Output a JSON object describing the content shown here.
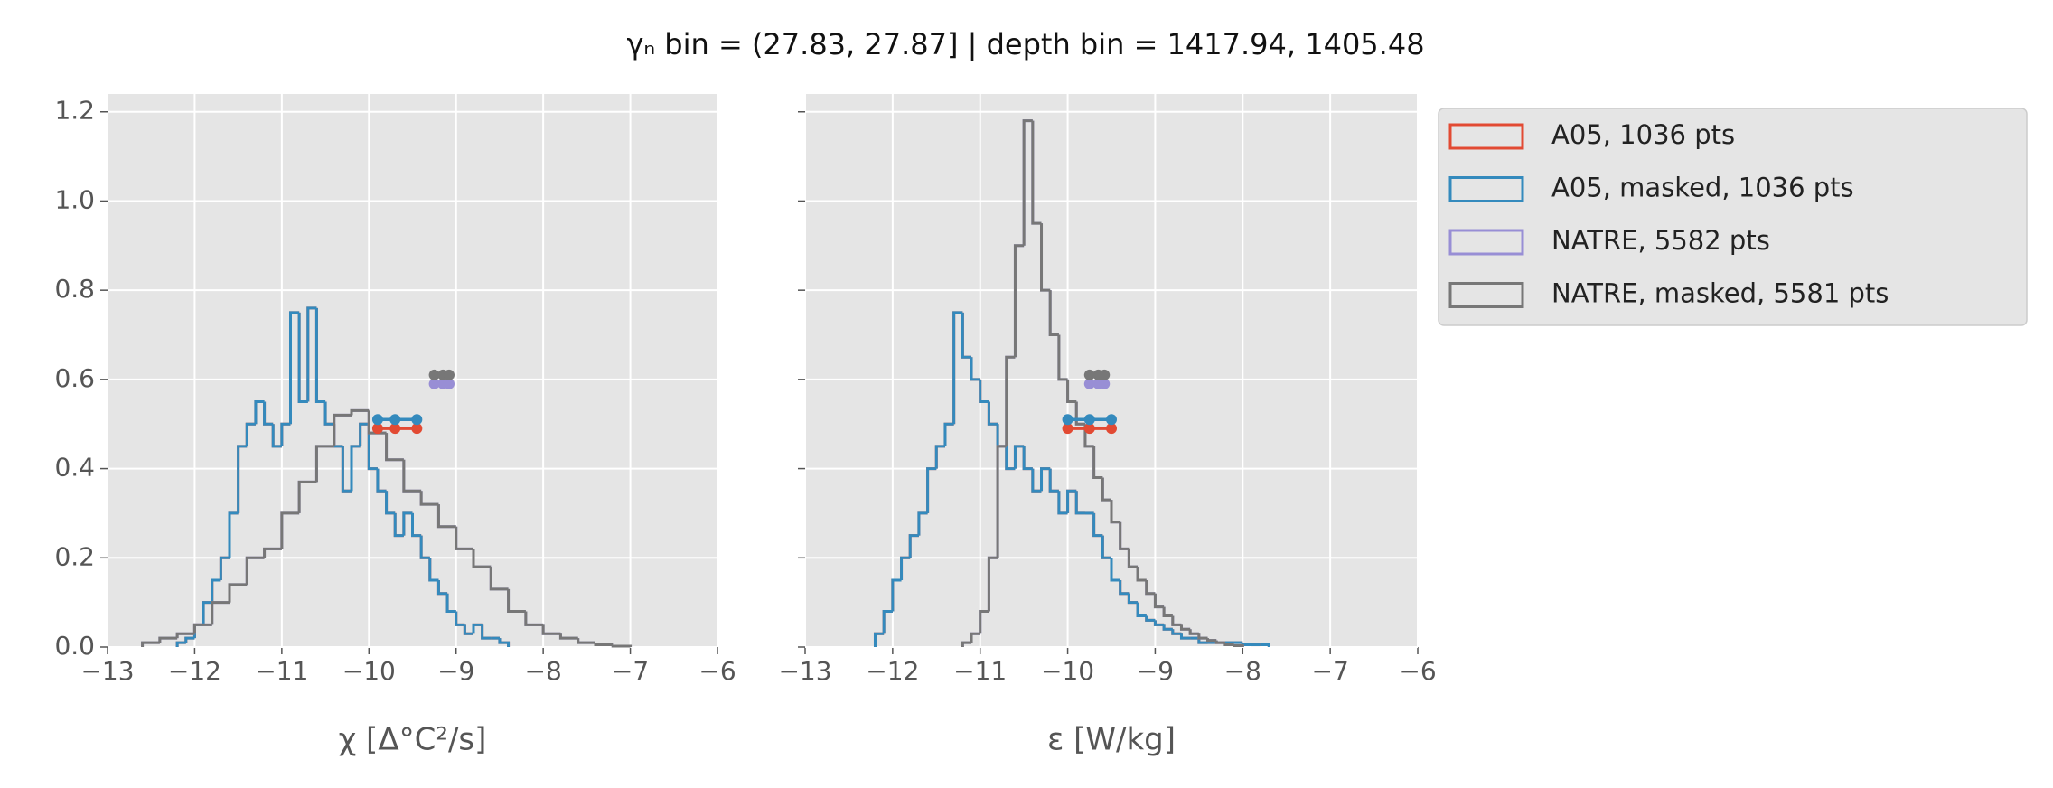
{
  "title": "γₙ bin = (27.83, 27.87] | depth bin = 1417.94, 1405.48",
  "chart_data": [
    {
      "type": "step-histogram",
      "xlabel": "χ [Δ°C²/s]",
      "xlim": [
        -13,
        -6
      ],
      "xticks": [
        {
          "value": -13,
          "label": "−13"
        },
        {
          "value": -12,
          "label": "−12"
        },
        {
          "value": -11,
          "label": "−11"
        },
        {
          "value": -10,
          "label": "−10"
        },
        {
          "value": -9,
          "label": "−9"
        },
        {
          "value": -8,
          "label": "−8"
        },
        {
          "value": -7,
          "label": "−7"
        },
        {
          "value": -6,
          "label": "−6"
        }
      ],
      "ylim": [
        0,
        1.24
      ],
      "yticks": [
        {
          "value": 0,
          "label": "0.0"
        },
        {
          "value": 0.2,
          "label": "0.2"
        },
        {
          "value": 0.4,
          "label": "0.4"
        },
        {
          "value": 0.6,
          "label": "0.6"
        },
        {
          "value": 0.8,
          "label": "0.8"
        },
        {
          "value": 1.0,
          "label": "1.0"
        },
        {
          "value": 1.2,
          "label": "1.2"
        }
      ],
      "grid": true,
      "series": [
        {
          "name": "A05, 1036 pts",
          "color": "#E24A33",
          "bins": [
            -12.2,
            -12.1,
            -12.0,
            -11.9,
            -11.8,
            -11.7,
            -11.6,
            -11.5,
            -11.4,
            -11.3,
            -11.2,
            -11.1,
            -11.0,
            -10.9,
            -10.8,
            -10.7,
            -10.6,
            -10.5,
            -10.4,
            -10.3,
            -10.2,
            -10.1,
            -10.0,
            -9.9,
            -9.8,
            -9.7,
            -9.6,
            -9.5,
            -9.4,
            -9.3,
            -9.2,
            -9.1,
            -9.0,
            -8.9,
            -8.8,
            -8.7,
            -8.6,
            -8.5,
            -8.4
          ],
          "values": [
            0.01,
            0.02,
            0.05,
            0.1,
            0.15,
            0.2,
            0.3,
            0.45,
            0.5,
            0.55,
            0.5,
            0.45,
            0.5,
            0.75,
            0.55,
            0.76,
            0.55,
            0.5,
            0.45,
            0.35,
            0.45,
            0.5,
            0.4,
            0.35,
            0.3,
            0.25,
            0.3,
            0.25,
            0.2,
            0.15,
            0.12,
            0.08,
            0.05,
            0.03,
            0.05,
            0.02,
            0.02,
            0.01
          ],
          "marker_x": [
            -9.9,
            -9.7,
            -9.45
          ],
          "marker_y": 0.49
        },
        {
          "name": "A05, masked,  1036 pts",
          "color": "#348ABD",
          "bins": [
            -12.2,
            -12.1,
            -12.0,
            -11.9,
            -11.8,
            -11.7,
            -11.6,
            -11.5,
            -11.4,
            -11.3,
            -11.2,
            -11.1,
            -11.0,
            -10.9,
            -10.8,
            -10.7,
            -10.6,
            -10.5,
            -10.4,
            -10.3,
            -10.2,
            -10.1,
            -10.0,
            -9.9,
            -9.8,
            -9.7,
            -9.6,
            -9.5,
            -9.4,
            -9.3,
            -9.2,
            -9.1,
            -9.0,
            -8.9,
            -8.8,
            -8.7,
            -8.6,
            -8.5,
            -8.4
          ],
          "values": [
            0.01,
            0.02,
            0.05,
            0.1,
            0.15,
            0.2,
            0.3,
            0.45,
            0.5,
            0.55,
            0.5,
            0.45,
            0.5,
            0.75,
            0.55,
            0.76,
            0.55,
            0.5,
            0.45,
            0.35,
            0.45,
            0.5,
            0.4,
            0.35,
            0.3,
            0.25,
            0.3,
            0.25,
            0.2,
            0.15,
            0.12,
            0.08,
            0.05,
            0.03,
            0.05,
            0.02,
            0.02,
            0.01
          ],
          "marker_x": [
            -9.9,
            -9.7,
            -9.45
          ],
          "marker_y": 0.51
        },
        {
          "name": "NATRE, 5582 pts",
          "color": "#988ED5",
          "bins": [
            -12.6,
            -12.4,
            -12.2,
            -12.0,
            -11.8,
            -11.6,
            -11.4,
            -11.2,
            -11.0,
            -10.8,
            -10.6,
            -10.4,
            -10.2,
            -10.0,
            -9.8,
            -9.6,
            -9.4,
            -9.2,
            -9.0,
            -8.8,
            -8.6,
            -8.4,
            -8.2,
            -8.0,
            -7.8,
            -7.6,
            -7.4,
            -7.2,
            -7.0
          ],
          "values": [
            0.01,
            0.02,
            0.03,
            0.05,
            0.1,
            0.14,
            0.2,
            0.22,
            0.3,
            0.37,
            0.45,
            0.52,
            0.53,
            0.48,
            0.42,
            0.35,
            0.32,
            0.27,
            0.22,
            0.18,
            0.13,
            0.08,
            0.05,
            0.03,
            0.02,
            0.01,
            0.005,
            0.002
          ],
          "marker_x": [
            -9.25,
            -9.15,
            -9.08
          ],
          "marker_y": 0.59
        },
        {
          "name": "NATRE, masked,  5581 pts",
          "color": "#777777",
          "bins": [
            -12.6,
            -12.4,
            -12.2,
            -12.0,
            -11.8,
            -11.6,
            -11.4,
            -11.2,
            -11.0,
            -10.8,
            -10.6,
            -10.4,
            -10.2,
            -10.0,
            -9.8,
            -9.6,
            -9.4,
            -9.2,
            -9.0,
            -8.8,
            -8.6,
            -8.4,
            -8.2,
            -8.0,
            -7.8,
            -7.6,
            -7.4,
            -7.2,
            -7.0
          ],
          "values": [
            0.01,
            0.02,
            0.03,
            0.05,
            0.1,
            0.14,
            0.2,
            0.22,
            0.3,
            0.37,
            0.45,
            0.52,
            0.53,
            0.48,
            0.42,
            0.35,
            0.32,
            0.27,
            0.22,
            0.18,
            0.13,
            0.08,
            0.05,
            0.03,
            0.02,
            0.01,
            0.005,
            0.002
          ],
          "marker_x": [
            -9.25,
            -9.15,
            -9.08
          ],
          "marker_y": 0.61
        }
      ]
    },
    {
      "type": "step-histogram",
      "xlabel": "ε [W/kg]",
      "xlim": [
        -13,
        -6
      ],
      "xticks": [
        {
          "value": -13,
          "label": "−13"
        },
        {
          "value": -12,
          "label": "−12"
        },
        {
          "value": -11,
          "label": "−11"
        },
        {
          "value": -10,
          "label": "−10"
        },
        {
          "value": -9,
          "label": "−9"
        },
        {
          "value": -8,
          "label": "−8"
        },
        {
          "value": -7,
          "label": "−7"
        },
        {
          "value": -6,
          "label": "−6"
        }
      ],
      "ylim": [
        0,
        1.24
      ],
      "yticks": [
        0,
        0.2,
        0.4,
        0.6,
        0.8,
        1,
        1.2
      ],
      "grid": true,
      "series": [
        {
          "color": "#E24A33",
          "bins": [
            -12.2,
            -12.1,
            -12.0,
            -11.9,
            -11.8,
            -11.7,
            -11.6,
            -11.5,
            -11.4,
            -11.3,
            -11.2,
            -11.1,
            -11.0,
            -10.9,
            -10.8,
            -10.7,
            -10.6,
            -10.5,
            -10.4,
            -10.3,
            -10.2,
            -10.1,
            -10.0,
            -9.9,
            -9.8,
            -9.7,
            -9.6,
            -9.5,
            -9.4,
            -9.3,
            -9.2,
            -9.1,
            -9.0,
            -8.9,
            -8.8,
            -8.7,
            -8.6,
            -8.5,
            -8.4,
            -8.3,
            -8.2,
            -8.1,
            -8.0,
            -7.9,
            -7.8,
            -7.7
          ],
          "values": [
            0.03,
            0.08,
            0.15,
            0.2,
            0.25,
            0.3,
            0.4,
            0.45,
            0.5,
            0.75,
            0.65,
            0.6,
            0.55,
            0.5,
            0.45,
            0.4,
            0.45,
            0.4,
            0.35,
            0.4,
            0.35,
            0.3,
            0.35,
            0.3,
            0.3,
            0.25,
            0.2,
            0.15,
            0.12,
            0.1,
            0.07,
            0.06,
            0.05,
            0.04,
            0.03,
            0.02,
            0.02,
            0.01,
            0.01,
            0.01,
            0.01,
            0.01,
            0.005,
            0.005,
            0.005
          ],
          "marker_x": [
            -10.0,
            -9.75,
            -9.5
          ],
          "marker_y": 0.49
        },
        {
          "color": "#348ABD",
          "bins": [
            -12.2,
            -12.1,
            -12.0,
            -11.9,
            -11.8,
            -11.7,
            -11.6,
            -11.5,
            -11.4,
            -11.3,
            -11.2,
            -11.1,
            -11.0,
            -10.9,
            -10.8,
            -10.7,
            -10.6,
            -10.5,
            -10.4,
            -10.3,
            -10.2,
            -10.1,
            -10.0,
            -9.9,
            -9.8,
            -9.7,
            -9.6,
            -9.5,
            -9.4,
            -9.3,
            -9.2,
            -9.1,
            -9.0,
            -8.9,
            -8.8,
            -8.7,
            -8.6,
            -8.5,
            -8.4,
            -8.3,
            -8.2,
            -8.1,
            -8.0,
            -7.9,
            -7.8,
            -7.7
          ],
          "values": [
            0.03,
            0.08,
            0.15,
            0.2,
            0.25,
            0.3,
            0.4,
            0.45,
            0.5,
            0.75,
            0.65,
            0.6,
            0.55,
            0.5,
            0.45,
            0.4,
            0.45,
            0.4,
            0.35,
            0.4,
            0.35,
            0.3,
            0.35,
            0.3,
            0.3,
            0.25,
            0.2,
            0.15,
            0.12,
            0.1,
            0.07,
            0.06,
            0.05,
            0.04,
            0.03,
            0.02,
            0.02,
            0.01,
            0.01,
            0.01,
            0.01,
            0.01,
            0.005,
            0.005,
            0.005
          ],
          "marker_x": [
            -10.0,
            -9.75,
            -9.5
          ],
          "marker_y": 0.51
        },
        {
          "color": "#988ED5",
          "bins": [
            -11.2,
            -11.1,
            -11.0,
            -10.9,
            -10.8,
            -10.7,
            -10.6,
            -10.5,
            -10.4,
            -10.3,
            -10.2,
            -10.1,
            -10.0,
            -9.9,
            -9.8,
            -9.7,
            -9.6,
            -9.5,
            -9.4,
            -9.3,
            -9.2,
            -9.1,
            -9.0,
            -8.9,
            -8.8,
            -8.7,
            -8.6,
            -8.5,
            -8.4,
            -8.3,
            -8.2,
            -8.1,
            -8.0
          ],
          "values": [
            0.01,
            0.03,
            0.08,
            0.2,
            0.45,
            0.65,
            0.9,
            1.18,
            0.95,
            0.8,
            0.7,
            0.6,
            0.55,
            0.5,
            0.45,
            0.38,
            0.33,
            0.28,
            0.22,
            0.18,
            0.15,
            0.12,
            0.09,
            0.07,
            0.05,
            0.04,
            0.03,
            0.02,
            0.015,
            0.01,
            0.005,
            0.003
          ],
          "marker_x": [
            -9.75,
            -9.65,
            -9.58
          ],
          "marker_y": 0.59
        },
        {
          "color": "#777777",
          "bins": [
            -11.2,
            -11.1,
            -11.0,
            -10.9,
            -10.8,
            -10.7,
            -10.6,
            -10.5,
            -10.4,
            -10.3,
            -10.2,
            -10.1,
            -10.0,
            -9.9,
            -9.8,
            -9.7,
            -9.6,
            -9.5,
            -9.4,
            -9.3,
            -9.2,
            -9.1,
            -9.0,
            -8.9,
            -8.8,
            -8.7,
            -8.6,
            -8.5,
            -8.4,
            -8.3,
            -8.2,
            -8.1,
            -8.0
          ],
          "values": [
            0.01,
            0.03,
            0.08,
            0.2,
            0.45,
            0.65,
            0.9,
            1.18,
            0.95,
            0.8,
            0.7,
            0.6,
            0.55,
            0.5,
            0.45,
            0.38,
            0.33,
            0.28,
            0.22,
            0.18,
            0.15,
            0.12,
            0.09,
            0.07,
            0.05,
            0.04,
            0.03,
            0.02,
            0.015,
            0.01,
            0.005,
            0.003
          ],
          "marker_x": [
            -9.75,
            -9.65,
            -9.58
          ],
          "marker_y": 0.61
        }
      ]
    }
  ]
}
